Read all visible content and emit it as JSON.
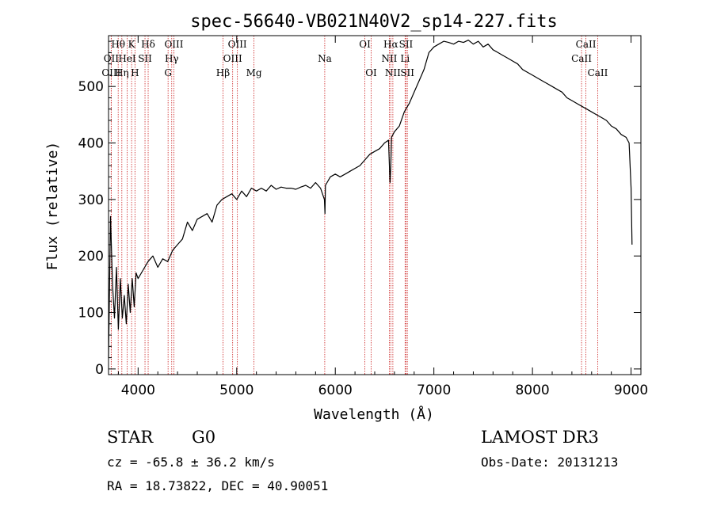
{
  "chart_data": {
    "type": "line",
    "title": "spec-56640-VB021N40V2_sp14-227.fits",
    "xlabel": "Wavelength (Å)",
    "ylabel": "Flux (relative)",
    "xlim": [
      3700,
      9100
    ],
    "ylim": [
      -10,
      590
    ],
    "xticks": [
      4000,
      5000,
      6000,
      7000,
      8000,
      9000
    ],
    "yticks": [
      0,
      100,
      200,
      300,
      400,
      500
    ],
    "grid": false,
    "series": [
      {
        "name": "flux",
        "color": "#000000",
        "x": [
          3700,
          3720,
          3740,
          3760,
          3780,
          3800,
          3820,
          3840,
          3860,
          3880,
          3900,
          3920,
          3940,
          3960,
          3980,
          4000,
          4050,
          4100,
          4150,
          4200,
          4250,
          4300,
          4350,
          4400,
          4450,
          4500,
          4550,
          4600,
          4650,
          4700,
          4750,
          4800,
          4850,
          4900,
          4950,
          5000,
          5050,
          5100,
          5150,
          5200,
          5250,
          5300,
          5350,
          5400,
          5450,
          5500,
          5550,
          5600,
          5650,
          5700,
          5750,
          5800,
          5850,
          5890,
          5895,
          5900,
          5950,
          6000,
          6050,
          6100,
          6150,
          6200,
          6250,
          6300,
          6350,
          6400,
          6450,
          6500,
          6540,
          6555,
          6563,
          6570,
          6600,
          6650,
          6700,
          6750,
          6800,
          6850,
          6900,
          6950,
          7000,
          7050,
          7100,
          7150,
          7200,
          7250,
          7300,
          7350,
          7400,
          7450,
          7500,
          7550,
          7600,
          7650,
          7700,
          7750,
          7800,
          7850,
          7900,
          7950,
          8000,
          8050,
          8100,
          8150,
          8200,
          8250,
          8300,
          8350,
          8400,
          8450,
          8500,
          8550,
          8600,
          8650,
          8700,
          8750,
          8800,
          8850,
          8900,
          8950,
          8980,
          9000,
          9010
        ],
        "values": [
          20,
          270,
          150,
          90,
          180,
          70,
          160,
          90,
          130,
          80,
          150,
          100,
          160,
          110,
          170,
          160,
          175,
          190,
          200,
          180,
          195,
          190,
          210,
          220,
          230,
          260,
          245,
          265,
          270,
          275,
          260,
          290,
          300,
          305,
          310,
          300,
          315,
          305,
          320,
          315,
          320,
          315,
          325,
          318,
          322,
          320,
          320,
          318,
          322,
          325,
          320,
          330,
          320,
          300,
          275,
          325,
          340,
          345,
          340,
          345,
          350,
          355,
          360,
          370,
          380,
          385,
          390,
          400,
          405,
          330,
          360,
          410,
          420,
          430,
          455,
          470,
          490,
          510,
          530,
          560,
          570,
          575,
          580,
          578,
          575,
          580,
          578,
          582,
          575,
          580,
          570,
          575,
          565,
          560,
          555,
          550,
          545,
          540,
          530,
          525,
          520,
          515,
          510,
          505,
          500,
          495,
          490,
          480,
          475,
          470,
          465,
          460,
          455,
          450,
          445,
          440,
          430,
          425,
          415,
          410,
          400,
          320,
          220
        ]
      }
    ],
    "spectral_lines": [
      {
        "label": "Hθ",
        "row": 0,
        "wavelength": 3798
      },
      {
        "label": "K",
        "row": 0,
        "wavelength": 3934
      },
      {
        "label": "Hδ",
        "row": 0,
        "wavelength": 4102
      },
      {
        "label": "OIII",
        "row": 0,
        "wavelength": 4363
      },
      {
        "label": "OIII",
        "row": 0,
        "wavelength": 5007
      },
      {
        "label": "OI",
        "row": 0,
        "wavelength": 6300
      },
      {
        "label": "Hα",
        "row": 0,
        "wavelength": 6563
      },
      {
        "label": "SII",
        "row": 0,
        "wavelength": 6717
      },
      {
        "label": "CaII",
        "row": 0,
        "wavelength": 8542
      },
      {
        "label": "OII",
        "row": 1,
        "wavelength": 3727
      },
      {
        "label": "HeI",
        "row": 1,
        "wavelength": 3889
      },
      {
        "label": "SII",
        "row": 1,
        "wavelength": 4070
      },
      {
        "label": "Hγ",
        "row": 1,
        "wavelength": 4341
      },
      {
        "label": "OIII",
        "row": 1,
        "wavelength": 4959
      },
      {
        "label": "Na",
        "row": 1,
        "wavelength": 5893
      },
      {
        "label": "NII",
        "row": 1,
        "wavelength": 6548
      },
      {
        "label": "Li",
        "row": 1,
        "wavelength": 6708
      },
      {
        "label": "CaII",
        "row": 1,
        "wavelength": 8498
      },
      {
        "label": "OIII",
        "row": 2,
        "wavelength": 3727
      },
      {
        "label": "Hη",
        "row": 2,
        "wavelength": 3835
      },
      {
        "label": "H",
        "row": 2,
        "wavelength": 3968
      },
      {
        "label": "G",
        "row": 2,
        "wavelength": 4304
      },
      {
        "label": "Hβ",
        "row": 2,
        "wavelength": 4861
      },
      {
        "label": "Mg",
        "row": 2,
        "wavelength": 5175
      },
      {
        "label": "OI",
        "row": 2,
        "wavelength": 6364
      },
      {
        "label": "NII",
        "row": 2,
        "wavelength": 6584
      },
      {
        "label": "SII",
        "row": 2,
        "wavelength": 6731
      },
      {
        "label": "CaII",
        "row": 2,
        "wavelength": 8662
      }
    ],
    "line_marker_color": "#cc2222"
  },
  "info": {
    "object_class": "STAR",
    "subclass": "G0",
    "survey": "LAMOST DR3",
    "redshift_text": "cz = -65.8 ± 36.2 km/s",
    "obs_date_text": "Obs-Date: 20131213",
    "coords_text": "RA =  18.73822, DEC =  40.90051"
  }
}
